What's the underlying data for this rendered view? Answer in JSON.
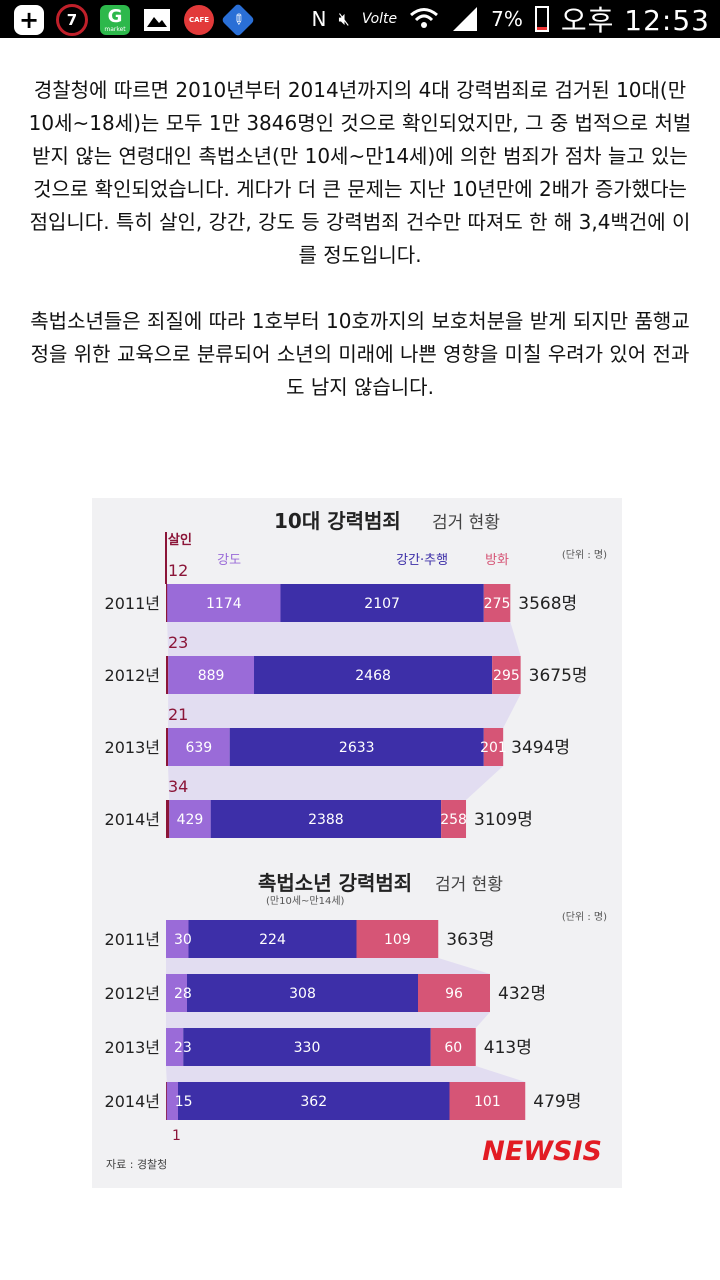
{
  "status_bar": {
    "notification_badge": "7",
    "gmarket_icon_letter": "G",
    "gmarket_icon_caption": "market",
    "cafe_icon_label": "CAFE",
    "network_label": "Volte",
    "battery_percent": "7%",
    "time": "오후 12:53"
  },
  "article": {
    "paragraph1": "경찰청에 따르면 2010년부터 2014년까지의 4대 강력범죄로 검거된 10대(만 10세~18세)는 모두 1만 3846명인 것으로 확인되었지만, 그 중 법적으로 처벌받지 않는 연령대인 촉법소년(만 10세~만14세)에 의한 범죄가 점차 늘고 있는것으로 확인되었습니다. 게다가 더 큰 문제는 지난 10년만에 2배가 증가했다는 점입니다. 특히 살인, 강간, 강도 등 강력범죄 건수만 따져도 한 해 3,4백건에 이를 정도입니다.",
    "paragraph2": "촉법소년들은 죄질에 따라 1호부터 10호까지의 보호처분을 받게 되지만 품행교정을 위한 교육으로 분류되어 소년의 미래에 나쁜 영향을 미칠 우려가 있어 전과도 남지 않습니다."
  },
  "figure": {
    "source": "자료 : 경찰청",
    "logo": "NEWSIS",
    "colors": {
      "murder": "#8b1538",
      "robbery": "#9a6bd8",
      "rape": "#3d2fa8",
      "arson": "#d65576",
      "band": "#dcd6f0"
    }
  },
  "chart_data": [
    {
      "type": "bar",
      "stacked": true,
      "orientation": "horizontal",
      "title": "10대 강력범죄",
      "title_suffix": "검거 현황",
      "unit_note": "(단위 : 명)",
      "categories": [
        "2011년",
        "2012년",
        "2013년",
        "2014년"
      ],
      "series": [
        {
          "name": "살인",
          "values": [
            12,
            23,
            21,
            34
          ]
        },
        {
          "name": "강도",
          "values": [
            1174,
            889,
            639,
            429
          ]
        },
        {
          "name": "강간·추행",
          "values": [
            2107,
            2468,
            2633,
            2388
          ]
        },
        {
          "name": "방화",
          "values": [
            275,
            295,
            201,
            258
          ]
        }
      ],
      "totals": [
        "3568명",
        "3675명",
        "3494명",
        "3109명"
      ]
    },
    {
      "type": "bar",
      "stacked": true,
      "orientation": "horizontal",
      "title": "촉법소년 강력범죄",
      "title_suffix": "검거 현황",
      "subtitle": "(만10세~만14세)",
      "unit_note": "(단위 : 명)",
      "categories": [
        "2011년",
        "2012년",
        "2013년",
        "2014년"
      ],
      "series": [
        {
          "name": "살인",
          "values": [
            0,
            0,
            0,
            1
          ]
        },
        {
          "name": "강도",
          "values": [
            30,
            28,
            23,
            15
          ]
        },
        {
          "name": "강간·추행",
          "values": [
            224,
            308,
            330,
            362
          ]
        },
        {
          "name": "방화",
          "values": [
            109,
            96,
            60,
            101
          ]
        }
      ],
      "totals": [
        "363명",
        "432명",
        "413명",
        "479명"
      ]
    }
  ]
}
